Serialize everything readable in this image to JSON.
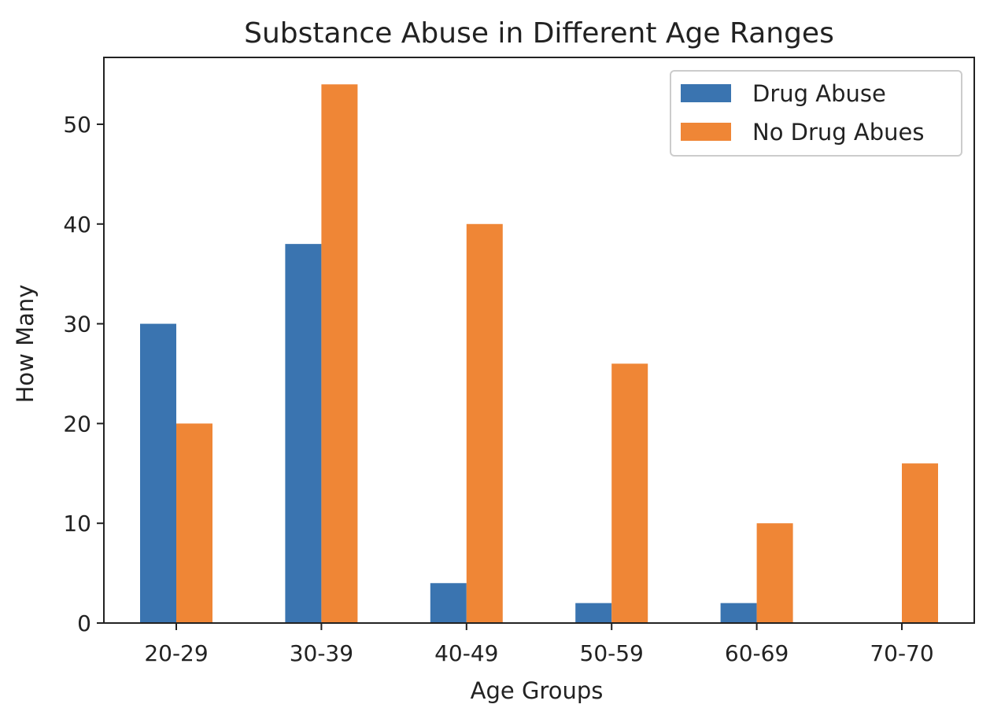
{
  "chart_data": {
    "type": "bar",
    "title": "Substance Abuse in Different Age Ranges",
    "xlabel": "Age Groups",
    "ylabel": "How Many",
    "categories": [
      "20-29",
      "30-39",
      "40-49",
      "50-59",
      "60-69",
      "70-70"
    ],
    "series": [
      {
        "name": "Drug Abuse",
        "values": [
          30,
          38,
          4,
          2,
          2,
          0
        ],
        "color": "#3a74b0"
      },
      {
        "name": "No Drug Abues",
        "values": [
          20,
          54,
          40,
          26,
          10,
          16
        ],
        "color": "#ef8636"
      }
    ],
    "ylim": [
      0,
      56.7
    ],
    "yticks": [
      0,
      10,
      20,
      30,
      40,
      50
    ],
    "grid": false,
    "legend": "top-right"
  }
}
